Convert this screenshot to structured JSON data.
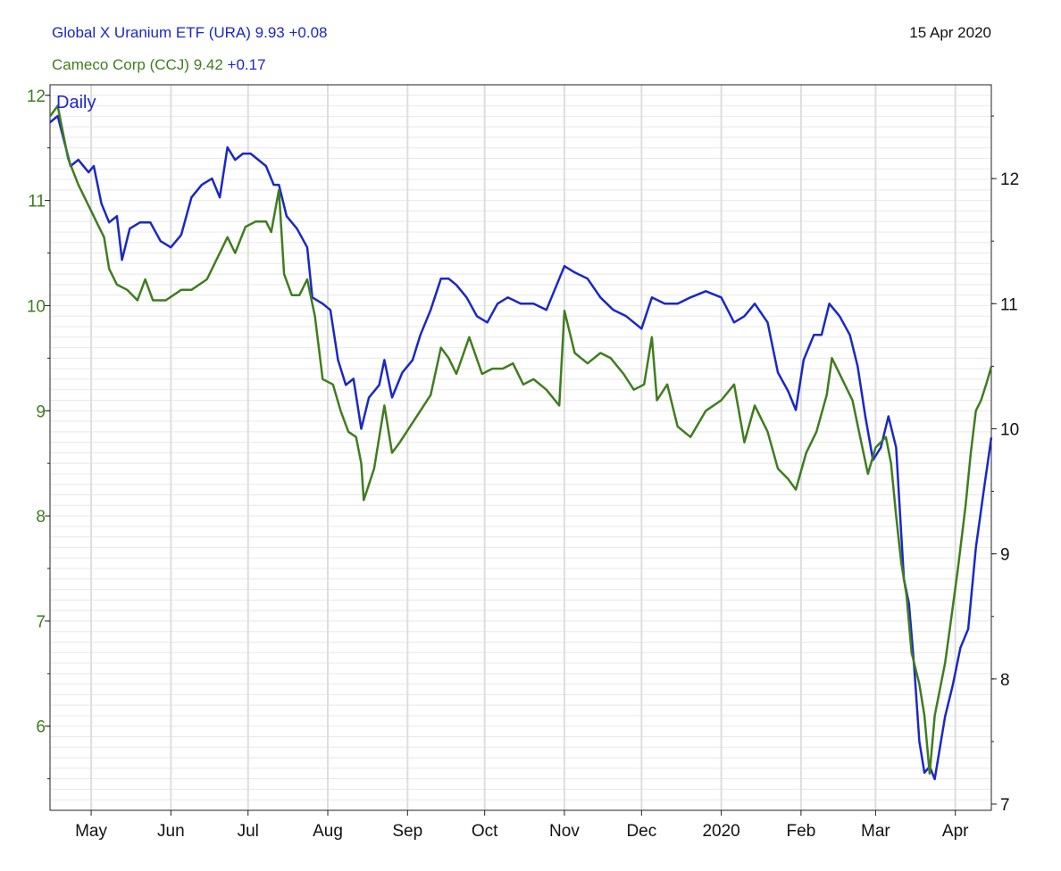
{
  "legend": {
    "series1": {
      "name": "Global X Uranium ETF (URA)",
      "value": "9.93",
      "change": "+0.08",
      "color": "#1a27c9"
    },
    "series2": {
      "name": "Cameco Corp (CCJ)",
      "value": "9.42",
      "change": "+0.17",
      "color": "#3f7d1e"
    }
  },
  "date": "15 Apr 2020",
  "period_label": "Daily",
  "chart_data": {
    "type": "line",
    "grid": true,
    "x_ticks": [
      "May",
      "Jun",
      "Jul",
      "Aug",
      "Sep",
      "Oct",
      "Nov",
      "Dec",
      "2020",
      "Feb",
      "Mar",
      "Apr"
    ],
    "x_range": [
      "2019-04-15",
      "2020-04-15"
    ],
    "left_axis": {
      "series": "CCJ",
      "ticks": [
        6,
        7,
        8,
        9,
        10,
        11,
        12
      ],
      "range": [
        5.2,
        12.1
      ]
    },
    "right_axis": {
      "series": "URA",
      "ticks": [
        7,
        8,
        9,
        10,
        11,
        12
      ],
      "range": [
        6.95,
        12.75
      ]
    },
    "series": [
      {
        "name": "URA",
        "axis": "right",
        "color": "#1a27c9",
        "points": [
          [
            "2019-04-15",
            12.45
          ],
          [
            "2019-04-18",
            12.5
          ],
          [
            "2019-04-23",
            12.1
          ],
          [
            "2019-04-26",
            12.15
          ],
          [
            "2019-04-30",
            12.05
          ],
          [
            "2019-05-02",
            12.1
          ],
          [
            "2019-05-05",
            11.8
          ],
          [
            "2019-05-08",
            11.65
          ],
          [
            "2019-05-11",
            11.7
          ],
          [
            "2019-05-13",
            11.35
          ],
          [
            "2019-05-16",
            11.6
          ],
          [
            "2019-05-20",
            11.65
          ],
          [
            "2019-05-24",
            11.65
          ],
          [
            "2019-05-28",
            11.5
          ],
          [
            "2019-06-01",
            11.45
          ],
          [
            "2019-06-05",
            11.55
          ],
          [
            "2019-06-09",
            11.85
          ],
          [
            "2019-06-13",
            11.95
          ],
          [
            "2019-06-17",
            12.0
          ],
          [
            "2019-06-20",
            11.85
          ],
          [
            "2019-06-23",
            12.25
          ],
          [
            "2019-06-26",
            12.15
          ],
          [
            "2019-06-29",
            12.2
          ],
          [
            "2019-07-02",
            12.2
          ],
          [
            "2019-07-05",
            12.15
          ],
          [
            "2019-07-08",
            12.1
          ],
          [
            "2019-07-11",
            11.95
          ],
          [
            "2019-07-13",
            11.95
          ],
          [
            "2019-07-16",
            11.7
          ],
          [
            "2019-07-20",
            11.6
          ],
          [
            "2019-07-24",
            11.45
          ],
          [
            "2019-07-26",
            11.05
          ],
          [
            "2019-07-30",
            11.0
          ],
          [
            "2019-08-02",
            10.95
          ],
          [
            "2019-08-05",
            10.55
          ],
          [
            "2019-08-08",
            10.35
          ],
          [
            "2019-08-11",
            10.4
          ],
          [
            "2019-08-14",
            10.0
          ],
          [
            "2019-08-17",
            10.25
          ],
          [
            "2019-08-21",
            10.35
          ],
          [
            "2019-08-23",
            10.55
          ],
          [
            "2019-08-26",
            10.25
          ],
          [
            "2019-08-30",
            10.45
          ],
          [
            "2019-09-03",
            10.55
          ],
          [
            "2019-09-06",
            10.75
          ],
          [
            "2019-09-10",
            10.95
          ],
          [
            "2019-09-14",
            11.2
          ],
          [
            "2019-09-17",
            11.2
          ],
          [
            "2019-09-20",
            11.15
          ],
          [
            "2019-09-24",
            11.05
          ],
          [
            "2019-09-28",
            10.9
          ],
          [
            "2019-10-02",
            10.85
          ],
          [
            "2019-10-06",
            11.0
          ],
          [
            "2019-10-10",
            11.05
          ],
          [
            "2019-10-15",
            11.0
          ],
          [
            "2019-10-20",
            11.0
          ],
          [
            "2019-10-25",
            10.95
          ],
          [
            "2019-11-01",
            11.3
          ],
          [
            "2019-11-05",
            11.25
          ],
          [
            "2019-11-10",
            11.2
          ],
          [
            "2019-11-15",
            11.05
          ],
          [
            "2019-11-20",
            10.95
          ],
          [
            "2019-11-25",
            10.9
          ],
          [
            "2019-12-01",
            10.8
          ],
          [
            "2019-12-05",
            11.05
          ],
          [
            "2019-12-10",
            11.0
          ],
          [
            "2019-12-15",
            11.0
          ],
          [
            "2019-12-20",
            11.05
          ],
          [
            "2019-12-26",
            11.1
          ],
          [
            "2020-01-01",
            11.05
          ],
          [
            "2020-01-06",
            10.85
          ],
          [
            "2020-01-10",
            10.9
          ],
          [
            "2020-01-14",
            11.0
          ],
          [
            "2020-01-19",
            10.85
          ],
          [
            "2020-01-23",
            10.45
          ],
          [
            "2020-01-27",
            10.3
          ],
          [
            "2020-01-30",
            10.15
          ],
          [
            "2020-02-02",
            10.55
          ],
          [
            "2020-02-06",
            10.75
          ],
          [
            "2020-02-09",
            10.75
          ],
          [
            "2020-02-12",
            11.0
          ],
          [
            "2020-02-16",
            10.9
          ],
          [
            "2020-02-20",
            10.75
          ],
          [
            "2020-02-23",
            10.5
          ],
          [
            "2020-02-26",
            10.1
          ],
          [
            "2020-02-29",
            9.75
          ],
          [
            "2020-03-03",
            9.85
          ],
          [
            "2020-03-06",
            10.1
          ],
          [
            "2020-03-09",
            9.85
          ],
          [
            "2020-03-12",
            8.8
          ],
          [
            "2020-03-14",
            8.6
          ],
          [
            "2020-03-16",
            8.1
          ],
          [
            "2020-03-18",
            7.5
          ],
          [
            "2020-03-20",
            7.25
          ],
          [
            "2020-03-22",
            7.3
          ],
          [
            "2020-03-24",
            7.2
          ],
          [
            "2020-03-26",
            7.45
          ],
          [
            "2020-03-28",
            7.7
          ],
          [
            "2020-03-31",
            7.95
          ],
          [
            "2020-04-03",
            8.25
          ],
          [
            "2020-04-06",
            8.4
          ],
          [
            "2020-04-09",
            9.05
          ],
          [
            "2020-04-12",
            9.5
          ],
          [
            "2020-04-15",
            9.93
          ]
        ]
      },
      {
        "name": "CCJ",
        "axis": "left",
        "color": "#3f7d1e",
        "points": [
          [
            "2019-04-15",
            11.8
          ],
          [
            "2019-04-18",
            11.9
          ],
          [
            "2019-04-22",
            11.4
          ],
          [
            "2019-04-26",
            11.15
          ],
          [
            "2019-05-01",
            10.9
          ],
          [
            "2019-05-03",
            10.8
          ],
          [
            "2019-05-06",
            10.65
          ],
          [
            "2019-05-08",
            10.35
          ],
          [
            "2019-05-11",
            10.2
          ],
          [
            "2019-05-15",
            10.15
          ],
          [
            "2019-05-19",
            10.05
          ],
          [
            "2019-05-22",
            10.25
          ],
          [
            "2019-05-25",
            10.05
          ],
          [
            "2019-05-30",
            10.05
          ],
          [
            "2019-06-05",
            10.15
          ],
          [
            "2019-06-09",
            10.15
          ],
          [
            "2019-06-15",
            10.25
          ],
          [
            "2019-06-19",
            10.45
          ],
          [
            "2019-06-23",
            10.65
          ],
          [
            "2019-06-26",
            10.5
          ],
          [
            "2019-06-30",
            10.75
          ],
          [
            "2019-07-04",
            10.8
          ],
          [
            "2019-07-08",
            10.8
          ],
          [
            "2019-07-10",
            10.7
          ],
          [
            "2019-07-13",
            11.1
          ],
          [
            "2019-07-15",
            10.3
          ],
          [
            "2019-07-18",
            10.1
          ],
          [
            "2019-07-21",
            10.1
          ],
          [
            "2019-07-24",
            10.25
          ],
          [
            "2019-07-27",
            9.9
          ],
          [
            "2019-07-30",
            9.3
          ],
          [
            "2019-08-03",
            9.25
          ],
          [
            "2019-08-06",
            9.0
          ],
          [
            "2019-08-09",
            8.8
          ],
          [
            "2019-08-12",
            8.75
          ],
          [
            "2019-08-14",
            8.5
          ],
          [
            "2019-08-15",
            8.15
          ],
          [
            "2019-08-19",
            8.45
          ],
          [
            "2019-08-23",
            9.05
          ],
          [
            "2019-08-26",
            8.6
          ],
          [
            "2019-08-29",
            8.7
          ],
          [
            "2019-09-02",
            8.85
          ],
          [
            "2019-09-06",
            9.0
          ],
          [
            "2019-09-10",
            9.15
          ],
          [
            "2019-09-14",
            9.6
          ],
          [
            "2019-09-17",
            9.5
          ],
          [
            "2019-09-20",
            9.35
          ],
          [
            "2019-09-25",
            9.7
          ],
          [
            "2019-09-30",
            9.35
          ],
          [
            "2019-10-04",
            9.4
          ],
          [
            "2019-10-08",
            9.4
          ],
          [
            "2019-10-12",
            9.45
          ],
          [
            "2019-10-16",
            9.25
          ],
          [
            "2019-10-20",
            9.3
          ],
          [
            "2019-10-25",
            9.2
          ],
          [
            "2019-10-30",
            9.05
          ],
          [
            "2019-11-01",
            9.95
          ],
          [
            "2019-11-05",
            9.55
          ],
          [
            "2019-11-10",
            9.45
          ],
          [
            "2019-11-15",
            9.55
          ],
          [
            "2019-11-19",
            9.5
          ],
          [
            "2019-11-24",
            9.35
          ],
          [
            "2019-11-28",
            9.2
          ],
          [
            "2019-12-02",
            9.25
          ],
          [
            "2019-12-05",
            9.7
          ],
          [
            "2019-12-07",
            9.1
          ],
          [
            "2019-12-11",
            9.25
          ],
          [
            "2019-12-15",
            8.85
          ],
          [
            "2019-12-20",
            8.75
          ],
          [
            "2019-12-26",
            9.0
          ],
          [
            "2020-01-01",
            9.1
          ],
          [
            "2020-01-06",
            9.25
          ],
          [
            "2020-01-10",
            8.7
          ],
          [
            "2020-01-14",
            9.05
          ],
          [
            "2020-01-19",
            8.8
          ],
          [
            "2020-01-23",
            8.45
          ],
          [
            "2020-01-27",
            8.35
          ],
          [
            "2020-01-30",
            8.25
          ],
          [
            "2020-02-03",
            8.6
          ],
          [
            "2020-02-07",
            8.8
          ],
          [
            "2020-02-11",
            9.15
          ],
          [
            "2020-02-13",
            9.5
          ],
          [
            "2020-02-17",
            9.3
          ],
          [
            "2020-02-21",
            9.1
          ],
          [
            "2020-02-24",
            8.75
          ],
          [
            "2020-02-27",
            8.4
          ],
          [
            "2020-03-01",
            8.65
          ],
          [
            "2020-03-05",
            8.75
          ],
          [
            "2020-03-07",
            8.5
          ],
          [
            "2020-03-09",
            8.0
          ],
          [
            "2020-03-11",
            7.55
          ],
          [
            "2020-03-13",
            7.25
          ],
          [
            "2020-03-15",
            6.7
          ],
          [
            "2020-03-18",
            6.4
          ],
          [
            "2020-03-20",
            6.1
          ],
          [
            "2020-03-22",
            5.55
          ],
          [
            "2020-03-24",
            6.1
          ],
          [
            "2020-03-26",
            6.35
          ],
          [
            "2020-03-28",
            6.6
          ],
          [
            "2020-03-30",
            6.95
          ],
          [
            "2020-04-02",
            7.5
          ],
          [
            "2020-04-05",
            8.1
          ],
          [
            "2020-04-07",
            8.6
          ],
          [
            "2020-04-09",
            9.0
          ],
          [
            "2020-04-11",
            9.1
          ],
          [
            "2020-04-13",
            9.25
          ],
          [
            "2020-04-15",
            9.42
          ]
        ]
      }
    ]
  }
}
